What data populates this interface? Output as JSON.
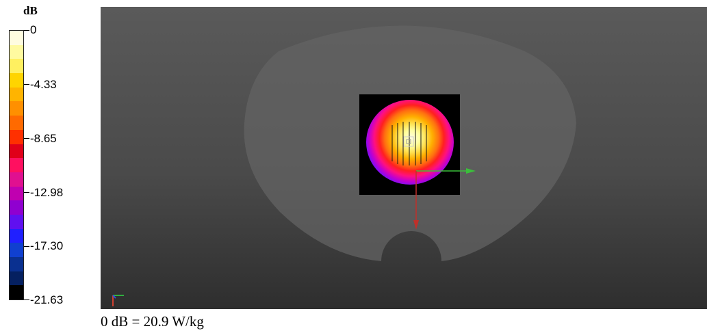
{
  "scale": {
    "unit": "dB",
    "ticks": [
      "0",
      "-4.33",
      "-8.65",
      "-12.98",
      "-17.30",
      "-21.63"
    ],
    "colors": [
      "#fffce0",
      "#fffaa0",
      "#fff060",
      "#ffd400",
      "#ffb400",
      "#ff9000",
      "#ff6a00",
      "#ff3000",
      "#e0001a",
      "#ff1060",
      "#e01090",
      "#c000b0",
      "#9000d0",
      "#6010f0",
      "#2020ff",
      "#1040d0",
      "#0a3090",
      "#052060",
      "#000000"
    ]
  },
  "caption": "0 dB = 20.9 W/kg"
}
